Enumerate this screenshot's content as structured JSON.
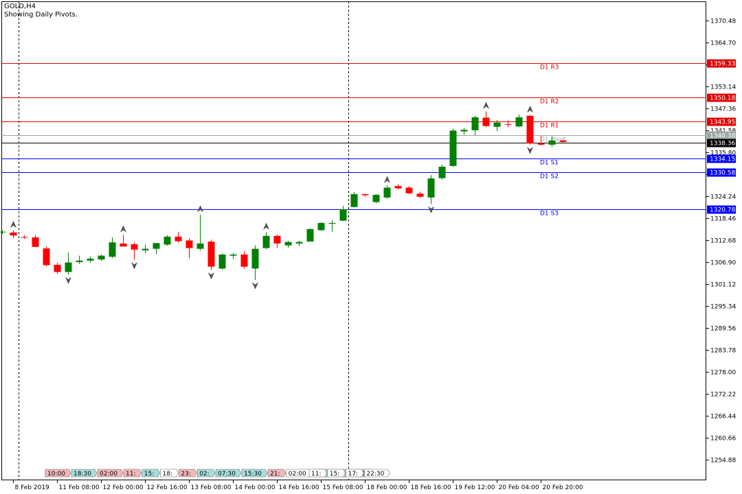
{
  "header": {
    "title": "GOLD,H4",
    "subtitle": "Showing Daily Pivots."
  },
  "colors": {
    "bull": "#008000",
    "bear": "#ff0000",
    "resistance": "#e00000",
    "support": "#0000ff",
    "pivot": "#9aa6a6",
    "current": "#000000",
    "grid": "#000000",
    "session_red": "#f4b8b8",
    "session_teal": "#a8dede"
  },
  "chart_data": {
    "type": "candlestick",
    "symbol": "GOLD",
    "timeframe": "H4",
    "ylim": [
      1249.5,
      1375.5
    ],
    "y_ticks": [
      "1370.48",
      "1364.70",
      "1358.92",
      "1353.14",
      "1347.36",
      "1341.58",
      "1335.80",
      "1330.02",
      "1324.24",
      "1318.46",
      "1312.68",
      "1306.90",
      "1301.12",
      "1295.34",
      "1289.56",
      "1283.78",
      "1278.00",
      "1272.22",
      "1266.44",
      "1260.66",
      "1254.88"
    ],
    "x_labels": [
      {
        "i": 1,
        "text": "8 Feb 2019"
      },
      {
        "i": 5,
        "text": "11 Feb 08:00"
      },
      {
        "i": 9,
        "text": "12 Feb 00:00"
      },
      {
        "i": 13,
        "text": "12 Feb 16:00"
      },
      {
        "i": 17,
        "text": "13 Feb 08:00"
      },
      {
        "i": 21,
        "text": "14 Feb 00:00"
      },
      {
        "i": 25,
        "text": "14 Feb 16:00"
      },
      {
        "i": 29,
        "text": "15 Feb 08:00"
      },
      {
        "i": 33,
        "text": "18 Feb 00:00"
      },
      {
        "i": 37,
        "text": "18 Feb 16:00"
      },
      {
        "i": 41,
        "text": "19 Feb 12:00"
      },
      {
        "i": 45,
        "text": "20 Feb 04:00"
      },
      {
        "i": 49,
        "text": "20 Feb 20:00"
      }
    ],
    "day_separators": [
      1.5,
      31.5
    ],
    "pivot_levels": [
      {
        "name": "D1 R3",
        "value": 1359.33,
        "label": "1359.33",
        "kind": "resistance"
      },
      {
        "name": "D1 R2",
        "value": 1350.18,
        "label": "1350.18",
        "kind": "resistance"
      },
      {
        "name": "D1 R1",
        "value": 1343.95,
        "label": "1343.95",
        "kind": "resistance"
      },
      {
        "name": "D1 Pivot",
        "value": 1340.38,
        "label": "1340.38",
        "kind": "pivot"
      },
      {
        "name": "D1 S1",
        "value": 1334.15,
        "label": "1334.15",
        "kind": "support"
      },
      {
        "name": "D1 S2",
        "value": 1330.58,
        "label": "1330.58",
        "kind": "support"
      },
      {
        "name": "D1 S3",
        "value": 1320.78,
        "label": "1320.78",
        "kind": "support"
      }
    ],
    "current_price": {
      "value": 1338.36,
      "label": "1338.36"
    },
    "candles": [
      [
        1314.8,
        1315.2,
        1314.3,
        1314.9
      ],
      [
        1314.7,
        1315.3,
        1313.3,
        1313.9
      ],
      [
        1313.5,
        1314.0,
        1313.0,
        1313.4
      ],
      [
        1313.4,
        1314.0,
        1310.8,
        1310.9
      ],
      [
        1310.5,
        1311.0,
        1305.8,
        1306.1
      ],
      [
        1306.2,
        1306.7,
        1303.8,
        1304.3
      ],
      [
        1304.3,
        1309.4,
        1303.6,
        1306.8
      ],
      [
        1306.9,
        1308.6,
        1306.4,
        1307.3
      ],
      [
        1307.3,
        1308.4,
        1306.8,
        1307.8
      ],
      [
        1307.6,
        1308.9,
        1307.2,
        1308.6
      ],
      [
        1308.3,
        1313.4,
        1308.0,
        1312.1
      ],
      [
        1311.8,
        1314.1,
        1311.0,
        1311.0
      ],
      [
        1311.6,
        1312.1,
        1307.5,
        1310.2
      ],
      [
        1310.0,
        1311.5,
        1309.3,
        1310.4
      ],
      [
        1310.4,
        1312.0,
        1309.0,
        1311.9
      ],
      [
        1311.5,
        1314.0,
        1311.2,
        1313.6
      ],
      [
        1313.6,
        1314.8,
        1312.0,
        1312.4
      ],
      [
        1312.6,
        1313.2,
        1307.9,
        1310.6
      ],
      [
        1310.4,
        1319.4,
        1309.9,
        1311.8
      ],
      [
        1312.3,
        1312.8,
        1304.8,
        1305.7
      ],
      [
        1305.2,
        1309.1,
        1304.9,
        1308.9
      ],
      [
        1308.6,
        1309.3,
        1307.7,
        1308.9
      ],
      [
        1308.9,
        1309.7,
        1305.2,
        1305.7
      ],
      [
        1305.2,
        1311.3,
        1302.2,
        1310.4
      ],
      [
        1310.6,
        1314.8,
        1310.3,
        1313.8
      ],
      [
        1313.8,
        1314.2,
        1310.6,
        1311.8
      ],
      [
        1311.3,
        1312.5,
        1310.7,
        1312.2
      ],
      [
        1311.8,
        1312.6,
        1311.1,
        1312.2
      ],
      [
        1312.3,
        1315.8,
        1312.3,
        1315.6
      ],
      [
        1315.3,
        1317.4,
        1315.1,
        1317.2
      ],
      [
        1317.0,
        1317.9,
        1314.9,
        1317.2
      ],
      [
        1317.8,
        1321.7,
        1317.7,
        1320.8
      ],
      [
        1321.4,
        1325.3,
        1321.3,
        1324.8
      ],
      [
        1324.8,
        1324.9,
        1324.1,
        1324.5
      ],
      [
        1322.7,
        1324.8,
        1322.4,
        1324.6
      ],
      [
        1323.9,
        1327.1,
        1323.6,
        1326.5
      ],
      [
        1326.9,
        1327.4,
        1326.0,
        1326.3
      ],
      [
        1326.5,
        1326.9,
        1324.8,
        1325.0
      ],
      [
        1324.9,
        1325.4,
        1323.8,
        1324.1
      ],
      [
        1323.9,
        1329.8,
        1322.2,
        1328.9
      ],
      [
        1329.0,
        1332.5,
        1328.6,
        1332.0
      ],
      [
        1332.2,
        1342.0,
        1331.9,
        1341.5
      ],
      [
        1341.3,
        1342.1,
        1340.4,
        1341.7
      ],
      [
        1341.6,
        1345.4,
        1340.3,
        1345.0
      ],
      [
        1344.9,
        1346.6,
        1342.4,
        1342.7
      ],
      [
        1342.5,
        1344.3,
        1341.4,
        1343.6
      ],
      [
        1343.2,
        1344.2,
        1342.4,
        1343.1
      ],
      [
        1342.6,
        1345.7,
        1342.4,
        1345.0
      ],
      [
        1345.4,
        1345.6,
        1337.8,
        1338.1
      ],
      [
        1338.2,
        1340.1,
        1337.6,
        1337.8
      ],
      [
        1337.8,
        1339.9,
        1337.2,
        1338.9
      ],
      [
        1338.9,
        1339.1,
        1338.4,
        1338.5
      ]
    ],
    "fractals": [
      {
        "i": 1,
        "dir": "up"
      },
      {
        "i": 6,
        "dir": "down"
      },
      {
        "i": 11,
        "dir": "up"
      },
      {
        "i": 12,
        "dir": "down"
      },
      {
        "i": 18,
        "dir": "up"
      },
      {
        "i": 19,
        "dir": "down"
      },
      {
        "i": 23,
        "dir": "down"
      },
      {
        "i": 24,
        "dir": "up"
      },
      {
        "i": 35,
        "dir": "up"
      },
      {
        "i": 39,
        "dir": "down"
      },
      {
        "i": 44,
        "dir": "up"
      },
      {
        "i": 48,
        "dir": "up"
      },
      {
        "i": 48,
        "dir": "down"
      }
    ]
  },
  "sessions": [
    {
      "label": "10:00",
      "color": "red"
    },
    {
      "label": "18:30",
      "color": "teal"
    },
    {
      "label": "02:00",
      "color": "red"
    },
    {
      "label": "11:",
      "color": "red"
    },
    {
      "label": "15:",
      "color": "teal"
    },
    {
      "label": "18:",
      "color": "white"
    },
    {
      "label": "23:",
      "color": "red"
    },
    {
      "label": "02:",
      "color": "teal"
    },
    {
      "label": "07:30",
      "color": "teal"
    },
    {
      "label": "15:30",
      "color": "teal"
    },
    {
      "label": "21:",
      "color": "red"
    },
    {
      "label": "02:00",
      "color": "white"
    },
    {
      "label": "11:",
      "color": "teal"
    },
    {
      "label": "15:",
      "color": "red"
    },
    {
      "label": "18:30",
      "color": "teal"
    },
    {
      "label": "11:",
      "color": "white"
    },
    {
      "label": "15:",
      "color": "white"
    },
    {
      "label": "17:",
      "color": "white"
    },
    {
      "label": "22:30",
      "color": "white"
    }
  ]
}
